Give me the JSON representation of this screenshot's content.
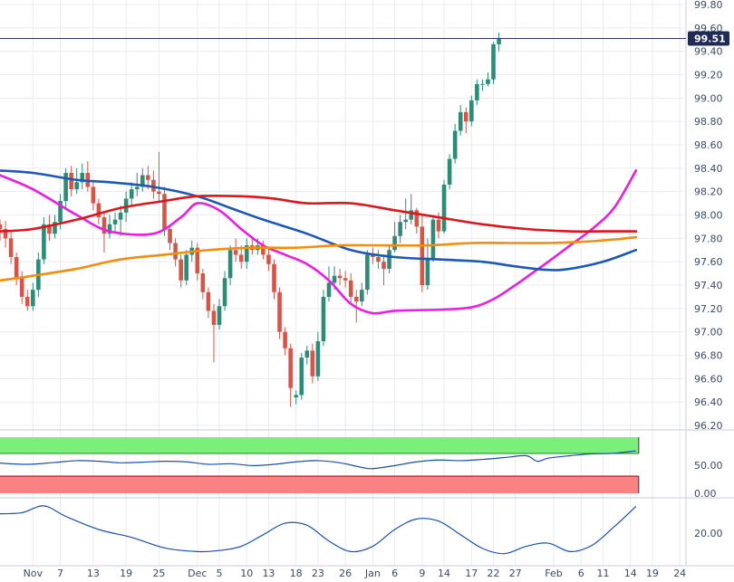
{
  "chart_data": [
    {
      "type": "candlestick",
      "y_ticks": [
        "99.80",
        "99.60",
        "99.40",
        "99.20",
        "99.00",
        "98.80",
        "98.60",
        "98.40",
        "98.20",
        "98.00",
        "97.80",
        "97.60",
        "97.40",
        "97.20",
        "97.00",
        "96.80",
        "96.60",
        "96.40",
        "96.20"
      ],
      "ylim": [
        96.2,
        99.8
      ],
      "last_price_label": "99.51",
      "last_price": 99.51,
      "colors": {
        "up": "#2f8a76",
        "down": "#d2574a",
        "sma_fast": "#e81fe0",
        "sma_mid": "#1c58b8",
        "sma_slow": "#e0141c",
        "sma_long": "#f58c0a",
        "last_line": "#2d3b66",
        "label_bg": "#1f2b55"
      },
      "candles": [
        [
          97.92,
          97.88,
          97.96,
          97.78
        ],
        [
          97.88,
          97.8,
          97.95,
          97.72
        ],
        [
          97.8,
          97.64,
          97.86,
          97.58
        ],
        [
          97.64,
          97.46,
          97.68,
          97.4
        ],
        [
          97.46,
          97.3,
          97.52,
          97.24
        ],
        [
          97.3,
          97.22,
          97.36,
          97.18
        ],
        [
          97.22,
          97.36,
          97.42,
          97.18
        ],
        [
          97.36,
          97.62,
          97.68,
          97.3
        ],
        [
          97.62,
          97.92,
          97.98,
          97.58
        ],
        [
          97.92,
          97.84,
          98.0,
          97.78
        ],
        [
          97.84,
          97.94,
          98.0,
          97.8
        ],
        [
          97.94,
          98.12,
          98.18,
          97.88
        ],
        [
          98.12,
          98.36,
          98.4,
          98.06
        ],
        [
          98.36,
          98.22,
          98.42,
          98.16
        ],
        [
          98.22,
          98.28,
          98.4,
          98.18
        ],
        [
          98.28,
          98.36,
          98.44,
          98.22
        ],
        [
          98.36,
          98.24,
          98.46,
          98.2
        ],
        [
          98.24,
          98.1,
          98.3,
          98.04
        ],
        [
          98.1,
          97.98,
          98.14,
          97.92
        ],
        [
          97.98,
          97.84,
          98.02,
          97.68
        ],
        [
          97.84,
          97.92,
          98.0,
          97.8
        ],
        [
          97.92,
          97.96,
          98.02,
          97.86
        ],
        [
          97.96,
          98.02,
          98.08,
          97.82
        ],
        [
          98.02,
          98.14,
          98.2,
          97.94
        ],
        [
          98.14,
          98.22,
          98.28,
          98.08
        ],
        [
          98.22,
          98.24,
          98.36,
          98.16
        ],
        [
          98.24,
          98.34,
          98.4,
          98.2
        ],
        [
          98.34,
          98.3,
          98.42,
          98.22
        ],
        [
          98.3,
          98.2,
          98.38,
          98.14
        ],
        [
          98.2,
          98.18,
          98.54,
          98.12
        ],
        [
          98.18,
          97.88,
          98.24,
          97.82
        ],
        [
          97.88,
          97.76,
          97.92,
          97.7
        ],
        [
          97.76,
          97.62,
          97.8,
          97.56
        ],
        [
          97.62,
          97.44,
          97.66,
          97.38
        ],
        [
          97.44,
          97.66,
          97.7,
          97.4
        ],
        [
          97.66,
          97.72,
          97.78,
          97.6
        ],
        [
          97.72,
          97.5,
          97.76,
          97.44
        ],
        [
          97.5,
          97.34,
          97.54,
          97.28
        ],
        [
          97.34,
          97.18,
          97.38,
          97.12
        ],
        [
          97.18,
          97.06,
          97.24,
          96.74
        ],
        [
          97.06,
          97.22,
          97.28,
          97.02
        ],
        [
          97.22,
          97.46,
          97.52,
          97.18
        ],
        [
          97.46,
          97.7,
          97.74,
          97.4
        ],
        [
          97.7,
          97.66,
          97.8,
          97.6
        ],
        [
          97.66,
          97.6,
          97.74,
          97.54
        ],
        [
          97.6,
          97.74,
          97.8,
          97.54
        ],
        [
          97.74,
          97.7,
          97.82,
          97.66
        ],
        [
          97.7,
          97.74,
          97.8,
          97.66
        ],
        [
          97.74,
          97.66,
          97.78,
          97.62
        ],
        [
          97.66,
          97.58,
          97.72,
          97.52
        ],
        [
          97.58,
          97.34,
          97.62,
          97.28
        ],
        [
          97.34,
          97.0,
          97.38,
          96.94
        ],
        [
          97.0,
          96.86,
          97.04,
          96.8
        ],
        [
          96.86,
          96.52,
          96.9,
          96.36
        ],
        [
          96.44,
          96.46,
          96.5,
          96.38
        ],
        [
          96.46,
          96.78,
          96.82,
          96.42
        ],
        [
          96.78,
          96.84,
          96.88,
          96.72
        ],
        [
          96.84,
          96.62,
          96.9,
          96.56
        ],
        [
          96.62,
          96.92,
          97.0,
          96.58
        ],
        [
          96.92,
          97.3,
          97.36,
          96.88
        ],
        [
          97.3,
          97.42,
          97.56,
          97.26
        ],
        [
          97.42,
          97.48,
          97.56,
          97.36
        ],
        [
          97.48,
          97.46,
          97.54,
          97.4
        ],
        [
          97.46,
          97.44,
          97.52,
          97.38
        ],
        [
          97.44,
          97.3,
          97.5,
          97.24
        ],
        [
          97.3,
          97.26,
          97.36,
          97.08
        ],
        [
          97.26,
          97.36,
          97.42,
          97.22
        ],
        [
          97.36,
          97.66,
          97.7,
          97.32
        ],
        [
          97.66,
          97.64,
          97.72,
          97.58
        ],
        [
          97.64,
          97.6,
          97.7,
          97.54
        ],
        [
          97.6,
          97.54,
          97.66,
          97.4
        ],
        [
          97.54,
          97.7,
          97.74,
          97.5
        ],
        [
          97.7,
          97.82,
          97.94,
          97.68
        ],
        [
          97.82,
          97.94,
          98.0,
          97.76
        ],
        [
          97.94,
          97.96,
          98.14,
          97.88
        ],
        [
          97.96,
          98.04,
          98.18,
          97.92
        ],
        [
          98.04,
          97.9,
          98.06,
          97.84
        ],
        [
          97.9,
          97.4,
          98.0,
          97.34
        ],
        [
          97.4,
          97.62,
          97.8,
          97.36
        ],
        [
          97.62,
          97.96,
          98.0,
          97.6
        ],
        [
          97.96,
          97.86,
          98.02,
          97.8
        ],
        [
          97.86,
          98.26,
          98.3,
          97.84
        ],
        [
          98.26,
          98.48,
          98.52,
          98.22
        ],
        [
          98.48,
          98.72,
          98.78,
          98.44
        ],
        [
          98.72,
          98.88,
          98.94,
          98.68
        ],
        [
          98.88,
          98.8,
          98.92,
          98.7
        ],
        [
          98.8,
          98.98,
          99.02,
          98.76
        ],
        [
          98.98,
          99.12,
          99.16,
          98.94
        ],
        [
          99.12,
          99.12,
          99.16,
          99.06
        ],
        [
          99.12,
          99.16,
          99.22,
          99.1
        ],
        [
          99.16,
          99.46,
          99.48,
          99.12
        ],
        [
          99.46,
          99.51,
          99.56,
          99.4
        ]
      ],
      "moving_averages": [
        {
          "color": "#e81fe0",
          "values": [
            [
              0,
              98.34
            ],
            [
              6,
              98.22
            ],
            [
              14,
              98.0
            ],
            [
              20,
              97.86
            ],
            [
              28,
              97.84
            ],
            [
              33,
              97.98
            ],
            [
              36,
              98.1
            ],
            [
              40,
              98.04
            ],
            [
              44,
              97.88
            ],
            [
              48,
              97.74
            ],
            [
              52,
              97.66
            ],
            [
              56,
              97.58
            ],
            [
              60,
              97.44
            ],
            [
              64,
              97.24
            ],
            [
              68,
              97.16
            ],
            [
              72,
              97.18
            ],
            [
              80,
              97.19
            ],
            [
              86,
              97.21
            ],
            [
              90,
              97.28
            ],
            [
              94,
              97.4
            ],
            [
              97,
              97.5
            ],
            [
              100,
              97.6
            ],
            [
              104,
              97.74
            ],
            [
              108,
              97.88
            ],
            [
              112,
              98.06
            ],
            [
              116,
              98.38
            ]
          ]
        },
        {
          "color": "#1c58b8",
          "values": [
            [
              0,
              98.38
            ],
            [
              6,
              98.36
            ],
            [
              14,
              98.3
            ],
            [
              20,
              98.28
            ],
            [
              28,
              98.24
            ],
            [
              36,
              98.16
            ],
            [
              42,
              98.06
            ],
            [
              48,
              97.96
            ],
            [
              56,
              97.84
            ],
            [
              64,
              97.7
            ],
            [
              72,
              97.64
            ],
            [
              80,
              97.62
            ],
            [
              88,
              97.6
            ],
            [
              94,
              97.56
            ],
            [
              100,
              97.53
            ],
            [
              104,
              97.54
            ],
            [
              110,
              97.6
            ],
            [
              116,
              97.7
            ]
          ]
        },
        {
          "color": "#e0141c",
          "values": [
            [
              0,
              97.86
            ],
            [
              6,
              97.88
            ],
            [
              14,
              97.96
            ],
            [
              22,
              98.06
            ],
            [
              30,
              98.12
            ],
            [
              36,
              98.16
            ],
            [
              44,
              98.16
            ],
            [
              50,
              98.14
            ],
            [
              56,
              98.1
            ],
            [
              64,
              98.1
            ],
            [
              72,
              98.04
            ],
            [
              80,
              97.98
            ],
            [
              88,
              97.92
            ],
            [
              96,
              97.88
            ],
            [
              104,
              97.86
            ],
            [
              110,
              97.86
            ],
            [
              116,
              97.86
            ]
          ]
        },
        {
          "color": "#f58c0a",
          "values": [
            [
              0,
              97.44
            ],
            [
              6,
              97.48
            ],
            [
              14,
              97.54
            ],
            [
              22,
              97.62
            ],
            [
              30,
              97.66
            ],
            [
              38,
              97.7
            ],
            [
              46,
              97.72
            ],
            [
              54,
              97.72
            ],
            [
              62,
              97.74
            ],
            [
              70,
              97.74
            ],
            [
              78,
              97.74
            ],
            [
              86,
              97.76
            ],
            [
              94,
              97.76
            ],
            [
              100,
              97.76
            ],
            [
              106,
              97.77
            ],
            [
              112,
              97.79
            ],
            [
              116,
              97.81
            ]
          ]
        }
      ]
    },
    {
      "type": "line",
      "y_tick_label": "50.00",
      "bands": {
        "upper_color": "#7af07a",
        "lower_color": "#fb8282",
        "upper_line_color": "#1a8a1a",
        "lower_line_color": "#a80000"
      },
      "line_color": "#1c4fb0",
      "values": [
        [
          0,
          0.54
        ],
        [
          5,
          0.5
        ],
        [
          10,
          0.56
        ],
        [
          14,
          0.62
        ],
        [
          18,
          0.6
        ],
        [
          22,
          0.55
        ],
        [
          26,
          0.57
        ],
        [
          30,
          0.6
        ],
        [
          34,
          0.58
        ],
        [
          38,
          0.5
        ],
        [
          42,
          0.52
        ],
        [
          46,
          0.46
        ],
        [
          50,
          0.5
        ],
        [
          54,
          0.58
        ],
        [
          58,
          0.62
        ],
        [
          62,
          0.55
        ],
        [
          66,
          0.4
        ],
        [
          68,
          0.36
        ],
        [
          72,
          0.46
        ],
        [
          76,
          0.58
        ],
        [
          80,
          0.64
        ],
        [
          84,
          0.62
        ],
        [
          88,
          0.66
        ],
        [
          92,
          0.72
        ],
        [
          96,
          0.78
        ],
        [
          98,
          0.6
        ],
        [
          100,
          0.7
        ],
        [
          104,
          0.78
        ],
        [
          108,
          0.84
        ],
        [
          112,
          0.86
        ],
        [
          116,
          0.94
        ]
      ]
    },
    {
      "type": "line",
      "y_tick_label": "20.00",
      "line_color": "#1c4fb0",
      "values": [
        [
          0,
          0.2
        ],
        [
          4,
          0.18
        ],
        [
          8,
          0.05
        ],
        [
          12,
          0.25
        ],
        [
          18,
          0.5
        ],
        [
          24,
          0.65
        ],
        [
          30,
          0.85
        ],
        [
          36,
          0.92
        ],
        [
          40,
          0.9
        ],
        [
          44,
          0.82
        ],
        [
          48,
          0.6
        ],
        [
          52,
          0.38
        ],
        [
          56,
          0.42
        ],
        [
          60,
          0.72
        ],
        [
          64,
          0.92
        ],
        [
          68,
          0.82
        ],
        [
          72,
          0.5
        ],
        [
          76,
          0.3
        ],
        [
          80,
          0.34
        ],
        [
          84,
          0.6
        ],
        [
          88,
          0.86
        ],
        [
          92,
          0.96
        ],
        [
          96,
          0.82
        ],
        [
          100,
          0.76
        ],
        [
          104,
          0.92
        ],
        [
          108,
          0.8
        ],
        [
          112,
          0.45
        ],
        [
          116,
          0.06
        ]
      ]
    }
  ],
  "x_ticks": [
    {
      "label": "Nov",
      "i": 6
    },
    {
      "label": "7",
      "i": 11
    },
    {
      "label": "13",
      "i": 17
    },
    {
      "label": "19",
      "i": 23
    },
    {
      "label": "25",
      "i": 29
    },
    {
      "label": "Dec",
      "i": 36
    },
    {
      "label": "5",
      "i": 40
    },
    {
      "label": "10",
      "i": 45
    },
    {
      "label": "13",
      "i": 49
    },
    {
      "label": "18",
      "i": 54
    },
    {
      "label": "23",
      "i": 58
    },
    {
      "label": "26",
      "i": 63
    },
    {
      "label": "Jan",
      "i": 68
    },
    {
      "label": "6",
      "i": 72
    },
    {
      "label": "9",
      "i": 77
    },
    {
      "label": "14",
      "i": 81
    },
    {
      "label": "17",
      "i": 86
    },
    {
      "label": "22",
      "i": 90
    },
    {
      "label": "27",
      "i": 94
    },
    {
      "label": "Feb",
      "i": 101
    },
    {
      "label": "6",
      "i": 106
    },
    {
      "label": "11",
      "i": 110
    },
    {
      "label": "14",
      "i": 115
    },
    {
      "label": "19",
      "i": 119
    },
    {
      "label": "24",
      "i": 124
    }
  ]
}
